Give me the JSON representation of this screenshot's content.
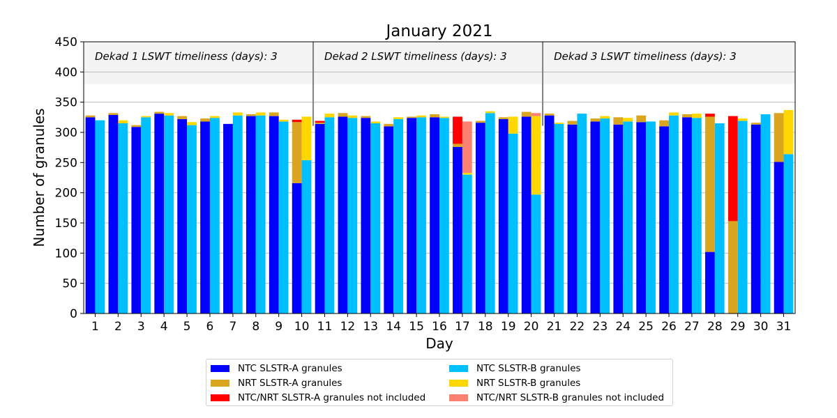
{
  "chart_data": {
    "type": "bar",
    "title": "January 2021",
    "xlabel": "Day",
    "ylabel": "Number of granules",
    "ylim": [
      0,
      450
    ],
    "yticks": [
      0,
      50,
      100,
      150,
      200,
      250,
      300,
      350,
      400,
      450
    ],
    "grid": "horizontal",
    "categories": [
      "1",
      "2",
      "3",
      "4",
      "5",
      "6",
      "7",
      "8",
      "9",
      "10",
      "11",
      "12",
      "13",
      "14",
      "15",
      "16",
      "17",
      "18",
      "19",
      "20",
      "21",
      "22",
      "23",
      "24",
      "25",
      "26",
      "27",
      "28",
      "29",
      "30",
      "31"
    ],
    "series": [
      {
        "name": "NTC SLSTR-A granules",
        "color": "#0000ff",
        "group": "A",
        "values": [
          325,
          329,
          309,
          331,
          322,
          318,
          314,
          327,
          327,
          216,
          314,
          326,
          324,
          310,
          324,
          325,
          276,
          316,
          322,
          326,
          328,
          313,
          318,
          313,
          317,
          310,
          325,
          102,
          0,
          313,
          251
        ]
      },
      {
        "name": "NRT SLSTR-A granules",
        "color": "#daa520",
        "group": "A",
        "values": [
          3,
          3,
          3,
          3,
          5,
          5,
          0,
          3,
          6,
          101,
          2,
          6,
          3,
          4,
          2,
          5,
          5,
          3,
          3,
          8,
          3,
          6,
          5,
          12,
          11,
          10,
          5,
          224,
          153,
          3,
          81
        ]
      },
      {
        "name": "NTC/NRT SLSTR-A granules not included",
        "color": "#ff0000",
        "group": "A",
        "values": [
          0,
          0,
          0,
          0,
          0,
          0,
          0,
          0,
          0,
          4,
          3,
          0,
          0,
          0,
          0,
          0,
          45,
          0,
          0,
          0,
          0,
          0,
          0,
          0,
          0,
          0,
          0,
          5,
          174,
          0,
          0
        ]
      },
      {
        "name": "NTC SLSTR-B granules",
        "color": "#00bfff",
        "group": "B",
        "values": [
          320,
          315,
          325,
          328,
          312,
          324,
          328,
          328,
          318,
          254,
          325,
          324,
          315,
          322,
          325,
          324,
          230,
          332,
          298,
          197,
          314,
          331,
          323,
          318,
          318,
          328,
          324,
          315,
          319,
          330,
          264
        ]
      },
      {
        "name": "NRT SLSTR-B granules",
        "color": "#ffd700",
        "group": "B",
        "values": [
          0,
          5,
          2,
          4,
          5,
          3,
          5,
          5,
          3,
          72,
          6,
          4,
          3,
          3,
          3,
          2,
          3,
          3,
          28,
          130,
          2,
          0,
          4,
          6,
          0,
          5,
          7,
          0,
          4,
          0,
          73
        ]
      },
      {
        "name": "NTC/NRT SLSTR-B granules not included",
        "color": "#fa8072",
        "group": "B",
        "values": [
          0,
          0,
          0,
          0,
          0,
          0,
          0,
          0,
          0,
          0,
          0,
          0,
          0,
          0,
          0,
          0,
          85,
          0,
          0,
          5,
          0,
          0,
          0,
          0,
          0,
          0,
          0,
          0,
          0,
          0,
          0
        ]
      }
    ],
    "dekads": [
      {
        "label": "Dekad 1 LSWT timeliness (days): 3",
        "start_day": 1
      },
      {
        "label": "Dekad 2 LSWT timeliness (days): 3",
        "start_day": 11
      },
      {
        "label": "Dekad 3 LSWT timeliness (days): 3",
        "start_day": 21
      }
    ],
    "band": {
      "from": 380,
      "to": 450,
      "color": "#f4f4f4"
    },
    "legend_position": "bottom-center"
  }
}
